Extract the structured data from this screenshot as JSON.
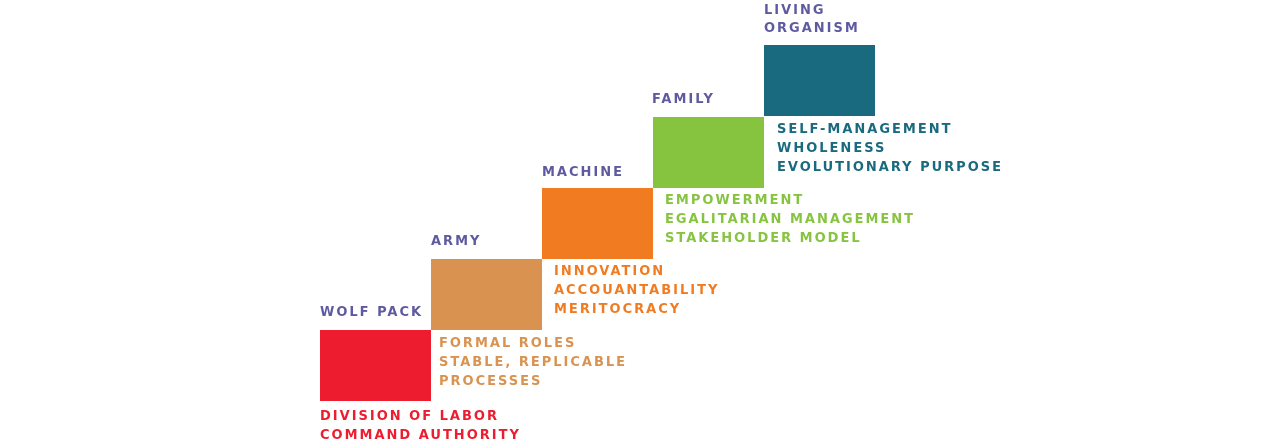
{
  "stages": [
    {
      "title": [
        "WOLF PACK"
      ],
      "color": "#ed1c2e",
      "traits": [
        "DIVISION OF LABOR",
        "COMMAND AUTHORITY"
      ]
    },
    {
      "title": [
        "ARMY"
      ],
      "color": "#d9924f",
      "traits": [
        "FORMAL ROLES",
        "STABLE, REPLICABLE",
        "PROCESSES"
      ]
    },
    {
      "title": [
        "MACHINE"
      ],
      "color": "#f07b21",
      "traits": [
        "INNOVATION",
        "ACCOUANTABILITY",
        "MERITOCRACY"
      ]
    },
    {
      "title": [
        "FAMILY"
      ],
      "color": "#86c440",
      "traits": [
        "EMPOWERMENT",
        "EGALITARIAN MANAGEMENT",
        "STAKEHOLDER MODEL"
      ]
    },
    {
      "title": [
        "LIVING",
        "ORGANISM"
      ],
      "color": "#1a6a7f",
      "traits": [
        "SELF-MANAGEMENT",
        "WHOLENESS",
        "EVOLUTIONARY PURPOSE"
      ]
    }
  ]
}
